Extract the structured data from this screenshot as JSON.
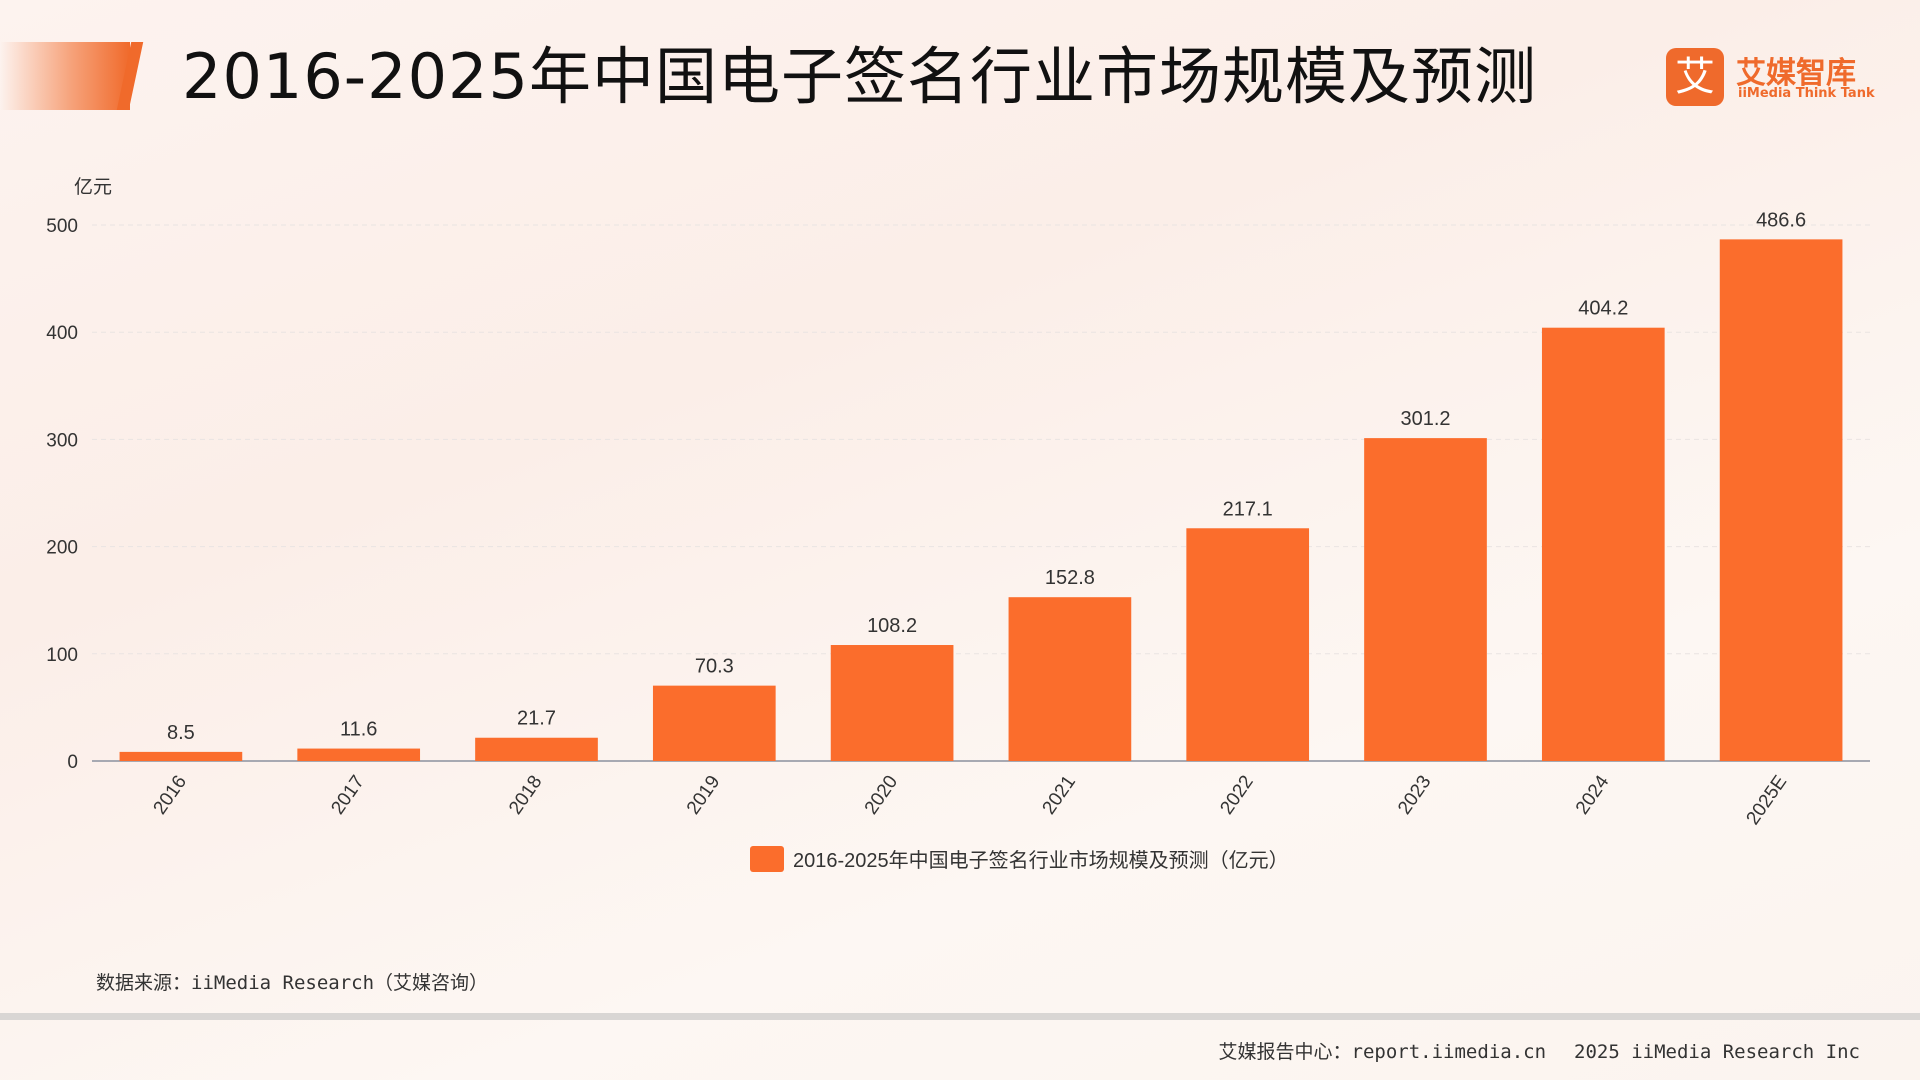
{
  "header": {
    "title": "2016-2025年中国电子签名行业市场规模及预测",
    "logo_mark": "艾",
    "logo_cn": "艾媒智库",
    "logo_en": "iiMedia Think Tank"
  },
  "colors": {
    "accent": "#f06a2b",
    "bar": "#fb6d2c",
    "grid": "#e9e4e2",
    "axis": "#a7a9b2"
  },
  "chart_data": {
    "type": "bar",
    "unit_label": "亿元",
    "categories": [
      "2016",
      "2017",
      "2018",
      "2019",
      "2020",
      "2021",
      "2022",
      "2023",
      "2024",
      "2025E"
    ],
    "series": [
      {
        "name": "2016-2025年中国电子签名行业市场规模及预测（亿元）",
        "values": [
          8.5,
          11.6,
          21.7,
          70.3,
          108.2,
          152.8,
          217.1,
          301.2,
          404.2,
          486.6
        ],
        "labels": [
          "8.5",
          "11.6",
          "21.7",
          "70.3",
          "108.2",
          "152.8",
          "217.1",
          "301.2",
          "404.2",
          "486.6"
        ]
      }
    ],
    "ylim": [
      0,
      500
    ],
    "yticks": [
      0,
      100,
      200,
      300,
      400,
      500
    ],
    "grid": true,
    "legend_position": "bottom-center"
  },
  "source_note": "数据来源：iiMedia Research（艾媒咨询）",
  "footer": {
    "site": "艾媒报告中心：report.iimedia.cn",
    "copyright": "2025 iiMedia Research Inc"
  }
}
